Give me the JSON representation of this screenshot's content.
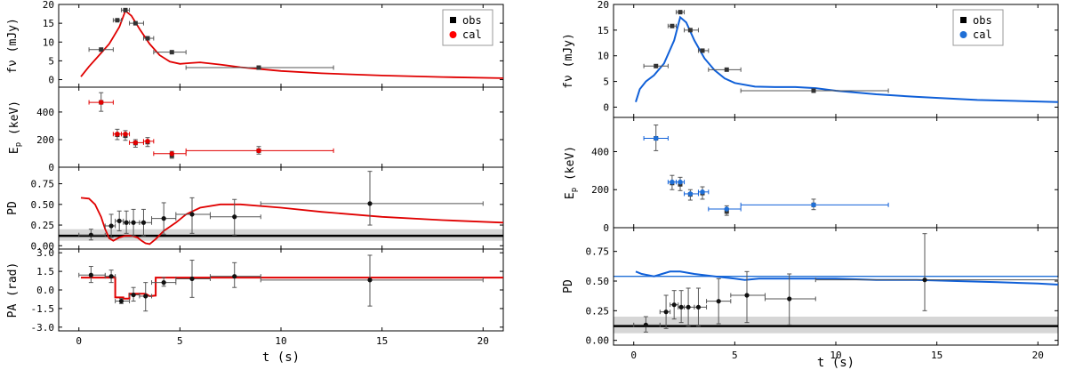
{
  "chart_data": [
    {
      "type": "scatter",
      "panel": "left",
      "xlabel": "t (s)",
      "xlim": [
        -1,
        21
      ],
      "xticks": [
        0,
        5,
        10,
        15,
        20
      ],
      "xtick_labels": [
        "0",
        "5",
        "10",
        "15",
        "20"
      ],
      "legend": {
        "placement": "top-right",
        "entries": [
          {
            "label": "obs",
            "color": "#000000",
            "marker": "square"
          },
          {
            "label": "cal",
            "color": "#ff0000",
            "marker": "circle"
          }
        ]
      },
      "calc_color": "#e00000",
      "rows": [
        {
          "id": "flux",
          "ylabel": "fν (mJy)",
          "ylim": [
            -2,
            20
          ],
          "yticks": [
            0,
            5,
            10,
            15,
            20
          ],
          "ytick_labels": [
            "0",
            "5",
            "10",
            "15",
            "20"
          ],
          "obs": [
            {
              "x": 1.1,
              "xl": 0.5,
              "xh": 1.7,
              "y": 8.0
            },
            {
              "x": 1.9,
              "xl": 1.7,
              "xh": 2.1,
              "y": 15.8
            },
            {
              "x": 2.3,
              "xl": 2.1,
              "xh": 2.5,
              "y": 18.5
            },
            {
              "x": 2.8,
              "xl": 2.5,
              "xh": 3.2,
              "y": 15.0
            },
            {
              "x": 3.4,
              "xl": 3.2,
              "xh": 3.7,
              "y": 11.0
            },
            {
              "x": 4.6,
              "xl": 3.7,
              "xh": 5.3,
              "y": 7.3
            },
            {
              "x": 8.9,
              "xl": 5.3,
              "xh": 12.6,
              "y": 3.2
            }
          ],
          "calc": [
            [
              0.1,
              0.8
            ],
            [
              0.5,
              3.5
            ],
            [
              1.0,
              6.5
            ],
            [
              1.5,
              9.5
            ],
            [
              2.0,
              14.0
            ],
            [
              2.3,
              18.3
            ],
            [
              2.6,
              17.0
            ],
            [
              3.0,
              13.5
            ],
            [
              3.5,
              9.5
            ],
            [
              4.0,
              6.5
            ],
            [
              4.5,
              4.8
            ],
            [
              5.0,
              4.2
            ],
            [
              5.5,
              4.4
            ],
            [
              6.0,
              4.6
            ],
            [
              7.0,
              4.0
            ],
            [
              8.0,
              3.3
            ],
            [
              9.0,
              2.8
            ],
            [
              10.0,
              2.3
            ],
            [
              12.0,
              1.7
            ],
            [
              15.0,
              1.1
            ],
            [
              18.0,
              0.7
            ],
            [
              21.0,
              0.4
            ]
          ]
        },
        {
          "id": "ep",
          "ylabel": "Ep (keV)",
          "ylim": [
            0,
            580
          ],
          "yticks": [
            0,
            200,
            400
          ],
          "ytick_labels": [
            "0",
            "200",
            "400"
          ],
          "obs": [
            {
              "x": 1.1,
              "xl": 0.5,
              "xh": 1.7,
              "y": 470,
              "yl": 405,
              "yh": 540
            },
            {
              "x": 1.9,
              "xl": 1.7,
              "xh": 2.1,
              "y": 235,
              "yl": 200,
              "yh": 275
            },
            {
              "x": 2.3,
              "xl": 2.1,
              "xh": 2.5,
              "y": 228,
              "yl": 195,
              "yh": 265
            },
            {
              "x": 2.8,
              "xl": 2.5,
              "xh": 3.2,
              "y": 175,
              "yl": 145,
              "yh": 200
            },
            {
              "x": 3.4,
              "xl": 3.2,
              "xh": 3.7,
              "y": 182,
              "yl": 150,
              "yh": 215
            },
            {
              "x": 4.6,
              "xl": 3.7,
              "xh": 5.3,
              "y": 85,
              "yl": 65,
              "yh": 115
            },
            {
              "x": 8.9,
              "xl": 5.3,
              "xh": 12.6,
              "y": 120,
              "yl": 95,
              "yh": 150
            }
          ],
          "calc_points": [
            {
              "x": 1.1,
              "y": 470,
              "xl": 0.5,
              "xh": 1.7
            },
            {
              "x": 1.9,
              "y": 240,
              "xl": 1.7,
              "xh": 2.1
            },
            {
              "x": 2.3,
              "y": 240,
              "xl": 2.1,
              "xh": 2.5
            },
            {
              "x": 2.8,
              "y": 178,
              "xl": 2.5,
              "xh": 3.2
            },
            {
              "x": 3.4,
              "y": 188,
              "xl": 3.2,
              "xh": 3.7
            },
            {
              "x": 4.6,
              "y": 98,
              "xl": 3.7,
              "xh": 5.3
            },
            {
              "x": 8.9,
              "y": 120,
              "xl": 5.3,
              "xh": 12.6
            }
          ]
        },
        {
          "id": "pd",
          "ylabel": "PD",
          "ylim": [
            -0.04,
            0.95
          ],
          "yticks": [
            0.0,
            0.25,
            0.5,
            0.75
          ],
          "ytick_labels": [
            "0.00",
            "0.25",
            "0.50",
            "0.75"
          ],
          "band": [
            0.06,
            0.2
          ],
          "hline": 0.12,
          "obs": [
            {
              "x": 0.6,
              "xl": 0.0,
              "xh": 1.3,
              "y": 0.13,
              "yl": 0.07,
              "yh": 0.2
            },
            {
              "x": 1.6,
              "xl": 1.3,
              "xh": 1.8,
              "y": 0.24,
              "yl": 0.1,
              "yh": 0.38
            },
            {
              "x": 2.0,
              "xl": 1.8,
              "xh": 2.2,
              "y": 0.3,
              "yl": 0.18,
              "yh": 0.42
            },
            {
              "x": 2.35,
              "xl": 2.2,
              "xh": 2.5,
              "y": 0.28,
              "yl": 0.15,
              "yh": 0.42
            },
            {
              "x": 2.7,
              "xl": 2.5,
              "xh": 3.0,
              "y": 0.28,
              "yl": 0.12,
              "yh": 0.44
            },
            {
              "x": 3.2,
              "xl": 3.0,
              "xh": 3.6,
              "y": 0.28,
              "yl": 0.12,
              "yh": 0.44
            },
            {
              "x": 4.2,
              "xl": 3.6,
              "xh": 4.8,
              "y": 0.33,
              "yl": 0.14,
              "yh": 0.52
            },
            {
              "x": 5.6,
              "xl": 4.8,
              "xh": 6.5,
              "y": 0.38,
              "yl": 0.15,
              "yh": 0.58
            },
            {
              "x": 7.7,
              "xl": 6.5,
              "xh": 9.0,
              "y": 0.35,
              "yl": 0.13,
              "yh": 0.56
            },
            {
              "x": 14.4,
              "xl": 9.0,
              "xh": 20.0,
              "y": 0.51,
              "yl": 0.25,
              "yh": 0.9
            }
          ],
          "calc": [
            [
              0.1,
              0.58
            ],
            [
              0.5,
              0.57
            ],
            [
              0.8,
              0.5
            ],
            [
              1.1,
              0.35
            ],
            [
              1.3,
              0.2
            ],
            [
              1.5,
              0.09
            ],
            [
              1.7,
              0.06
            ],
            [
              2.0,
              0.1
            ],
            [
              2.3,
              0.12
            ],
            [
              2.6,
              0.12
            ],
            [
              2.9,
              0.1
            ],
            [
              3.1,
              0.06
            ],
            [
              3.3,
              0.03
            ],
            [
              3.5,
              0.02
            ],
            [
              3.8,
              0.08
            ],
            [
              4.2,
              0.18
            ],
            [
              4.8,
              0.28
            ],
            [
              5.3,
              0.38
            ],
            [
              6.0,
              0.46
            ],
            [
              7.0,
              0.5
            ],
            [
              8.0,
              0.5
            ],
            [
              10.0,
              0.46
            ],
            [
              12.0,
              0.41
            ],
            [
              15.0,
              0.35
            ],
            [
              18.0,
              0.31
            ],
            [
              21.0,
              0.28
            ]
          ],
          "calc_right": [
            [
              0.1,
              0.58
            ],
            [
              0.4,
              0.56
            ],
            [
              0.7,
              0.55
            ],
            [
              1.0,
              0.54
            ],
            [
              1.4,
              0.56
            ],
            [
              1.8,
              0.58
            ],
            [
              2.3,
              0.58
            ],
            [
              3.0,
              0.56
            ],
            [
              4.0,
              0.54
            ],
            [
              5.0,
              0.52
            ],
            [
              5.5,
              0.51
            ],
            [
              6.2,
              0.52
            ],
            [
              7.0,
              0.52
            ],
            [
              8.0,
              0.52
            ],
            [
              9.0,
              0.52
            ],
            [
              10.0,
              0.52
            ],
            [
              12.0,
              0.51
            ],
            [
              14.0,
              0.51
            ],
            [
              16.0,
              0.5
            ],
            [
              18.0,
              0.49
            ],
            [
              20.0,
              0.48
            ],
            [
              21.0,
              0.47
            ]
          ],
          "hline_right": 0.54,
          "obs_right_last_xh": 21.0
        },
        {
          "id": "pa",
          "ylabel": "PA (rad)",
          "ylim": [
            -3.3,
            3.3
          ],
          "yticks": [
            -3.0,
            -1.5,
            0.0,
            1.5,
            3.0
          ],
          "ytick_labels": [
            "-3.0",
            "-1.5",
            "0.0",
            "1.5",
            "3.0"
          ],
          "obs": [
            {
              "x": 0.6,
              "xl": 0.0,
              "xh": 1.3,
              "y": 1.2,
              "yl": 0.6,
              "yh": 1.9
            },
            {
              "x": 1.6,
              "xl": 1.3,
              "xh": 1.8,
              "y": 1.1,
              "yl": 0.6,
              "yh": 1.6
            },
            {
              "x": 2.1,
              "xl": 1.8,
              "xh": 2.5,
              "y": -0.9,
              "yl": -1.1,
              "yh": -0.7
            },
            {
              "x": 2.7,
              "xl": 2.5,
              "xh": 3.0,
              "y": -0.4,
              "yl": -0.9,
              "yh": 0.2
            },
            {
              "x": 3.3,
              "xl": 3.0,
              "xh": 3.6,
              "y": -0.5,
              "yl": -1.7,
              "yh": 0.6
            },
            {
              "x": 4.2,
              "xl": 3.6,
              "xh": 4.8,
              "y": 0.6,
              "yl": 0.3,
              "yh": 1.0
            },
            {
              "x": 5.6,
              "xl": 4.8,
              "xh": 6.5,
              "y": 0.9,
              "yl": -0.6,
              "yh": 2.4
            },
            {
              "x": 7.7,
              "xl": 6.5,
              "xh": 9.0,
              "y": 1.1,
              "yl": 0.2,
              "yh": 2.2
            },
            {
              "x": 14.4,
              "xl": 9.0,
              "xh": 20.0,
              "y": 0.8,
              "yl": -1.3,
              "yh": 2.8
            }
          ],
          "calc": [
            [
              0.1,
              1.0
            ],
            [
              1.8,
              1.0
            ],
            [
              1.8,
              -0.6
            ],
            [
              2.2,
              -0.6
            ],
            [
              2.2,
              -0.7
            ],
            [
              2.5,
              -0.7
            ],
            [
              2.5,
              -0.3
            ],
            [
              3.3,
              -0.3
            ],
            [
              3.5,
              -0.5
            ],
            [
              3.8,
              -0.45
            ],
            [
              3.8,
              1.0
            ],
            [
              21.0,
              1.0
            ]
          ]
        }
      ]
    },
    {
      "type": "scatter",
      "panel": "right",
      "xlabel": "t (s)",
      "xlim": [
        -1,
        21
      ],
      "xticks": [
        0,
        5,
        10,
        15,
        20
      ],
      "xtick_labels": [
        "0",
        "5",
        "10",
        "15",
        "20"
      ],
      "legend": {
        "placement": "top-right",
        "entries": [
          {
            "label": "obs",
            "color": "#000000",
            "marker": "square"
          },
          {
            "label": "cal",
            "color": "#1f6fd6",
            "marker": "circle"
          }
        ]
      },
      "calc_color": "#1060d8"
    }
  ],
  "labels": {
    "left_x": "t (s)",
    "right_x": "t (s)",
    "flux_y": "fν (mJy)",
    "ep_y": "E",
    "ep_sub": "p",
    "ep_unit": " (keV)",
    "pd_y": "PD",
    "pa_y": "PA (rad)",
    "legend_obs": "obs",
    "legend_cal": "cal"
  }
}
